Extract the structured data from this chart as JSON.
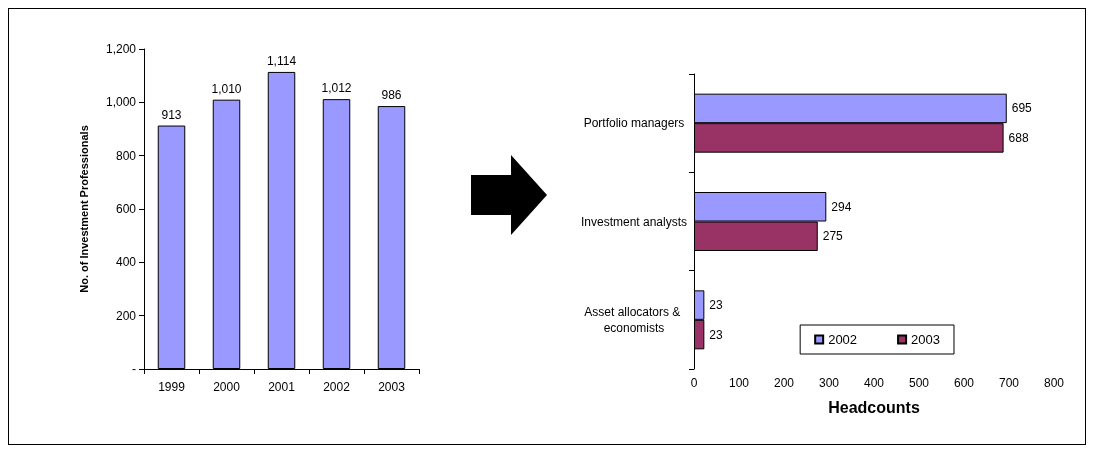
{
  "chart_data": [
    {
      "type": "bar",
      "categories": [
        "1999",
        "2000",
        "2001",
        "2002",
        "2003"
      ],
      "values": [
        913,
        1010,
        1114,
        1012,
        986
      ],
      "value_labels": [
        "913",
        "1,010",
        "1,114",
        "1,012",
        "986"
      ],
      "color": "#9999ff",
      "ylabel": "No. of Investment Professionals",
      "ylim": [
        0,
        1200
      ],
      "yticks": [
        {
          "value": 0,
          "label": "-"
        },
        200,
        400,
        600,
        800,
        {
          "value": 1000,
          "label": "1,000"
        },
        {
          "value": 1200,
          "label": "1,200"
        }
      ],
      "grid": false,
      "legend": false
    },
    {
      "type": "bar",
      "orientation": "horizontal",
      "categories": [
        "Portfolio managers",
        "Investment analysts",
        "Asset allocators & economists"
      ],
      "series": [
        {
          "name": "2002",
          "color": "#9999ff",
          "values": [
            695,
            294,
            23
          ]
        },
        {
          "name": "2003",
          "color": "#993366",
          "values": [
            688,
            275,
            23
          ]
        }
      ],
      "xlabel": "Headcounts",
      "xlim": [
        0,
        800
      ],
      "xticks": [
        0,
        100,
        200,
        300,
        400,
        500,
        600,
        700,
        800
      ],
      "data_labels": true,
      "grid": false,
      "legend": "bottom right"
    }
  ]
}
